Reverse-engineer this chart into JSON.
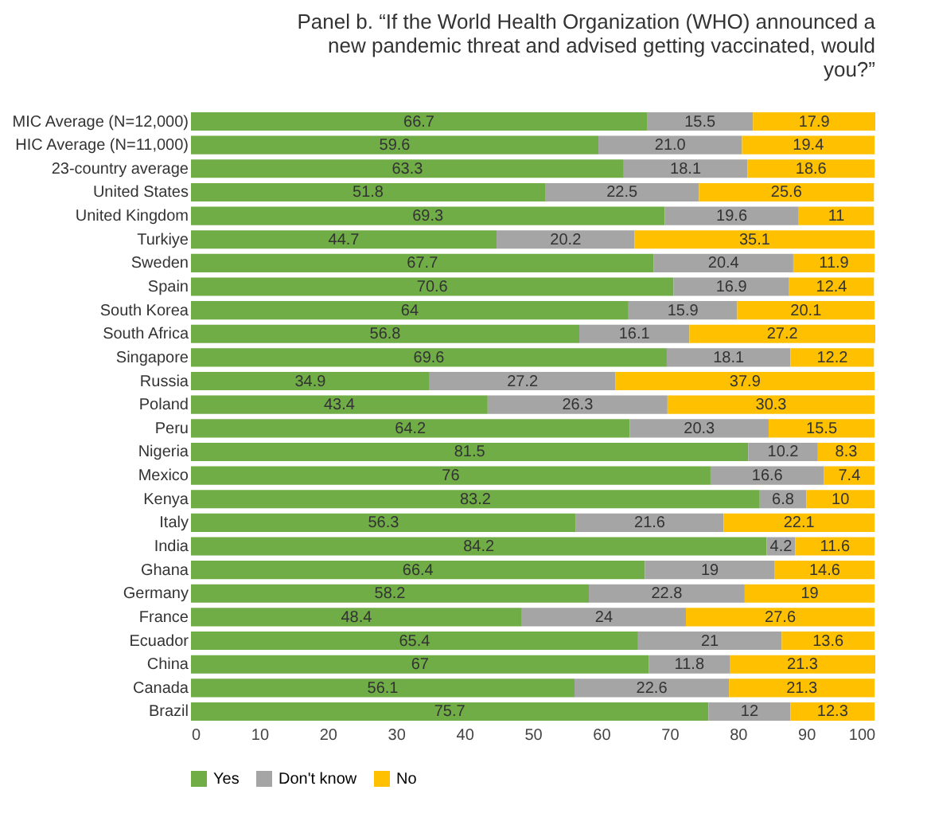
{
  "chart_data": {
    "type": "bar",
    "orientation": "horizontal",
    "stacked": true,
    "title": "Panel b. “If the World Health Organization (WHO) announced a new pandemic threat and advised getting vaccinated, would you?”",
    "categories": [
      "MIC Average (N=12,000)",
      "HIC Average (N=11,000)",
      "23-country average",
      "United States",
      "United Kingdom",
      "Turkiye",
      "Sweden",
      "Spain",
      "South Korea",
      "South Africa",
      "Singapore",
      "Russia",
      "Poland",
      "Peru",
      "Nigeria",
      "Mexico",
      "Kenya",
      "Italy",
      "India",
      "Ghana",
      "Germany",
      "France",
      "Ecuador",
      "China",
      "Canada",
      "Brazil"
    ],
    "series": [
      {
        "name": "Yes",
        "color": "#70ad47",
        "values": [
          66.7,
          59.6,
          63.3,
          51.8,
          69.3,
          44.7,
          67.7,
          70.6,
          64,
          56.8,
          69.6,
          34.9,
          43.4,
          64.2,
          81.5,
          76,
          83.2,
          56.3,
          84.2,
          66.4,
          58.2,
          48.4,
          65.4,
          67,
          56.1,
          75.7
        ],
        "value_labels": [
          "66.7",
          "59.6",
          "63.3",
          "51.8",
          "69.3",
          "44.7",
          "67.7",
          "70.6",
          "64",
          "56.8",
          "69.6",
          "34.9",
          "43.4",
          "64.2",
          "81.5",
          "76",
          "83.2",
          "56.3",
          "84.2",
          "66.4",
          "58.2",
          "48.4",
          "65.4",
          "67",
          "56.1",
          "75.7"
        ]
      },
      {
        "name": "Don't know",
        "color": "#a5a5a5",
        "values": [
          15.5,
          21.0,
          18.1,
          22.5,
          19.6,
          20.2,
          20.4,
          16.9,
          15.9,
          16.1,
          18.1,
          27.2,
          26.3,
          20.3,
          10.2,
          16.6,
          6.8,
          21.6,
          4.2,
          19,
          22.8,
          24,
          21,
          11.8,
          22.6,
          12
        ],
        "value_labels": [
          "15.5",
          "21.0",
          "18.1",
          "22.5",
          "19.6",
          "20.2",
          "20.4",
          "16.9",
          "15.9",
          "16.1",
          "18.1",
          "27.2",
          "26.3",
          "20.3",
          "10.2",
          "16.6",
          "6.8",
          "21.6",
          "4.2",
          "19",
          "22.8",
          "24",
          "21",
          "11.8",
          "22.6",
          "12"
        ]
      },
      {
        "name": "No",
        "color": "#ffc000",
        "values": [
          17.9,
          19.4,
          18.6,
          25.6,
          11,
          35.1,
          11.9,
          12.4,
          20.1,
          27.2,
          12.2,
          37.9,
          30.3,
          15.5,
          8.3,
          7.4,
          10,
          22.1,
          11.6,
          14.6,
          19,
          27.6,
          13.6,
          21.3,
          21.3,
          12.3
        ],
        "value_labels": [
          "17.9",
          "19.4",
          "18.6",
          "25.6",
          "11",
          "35.1",
          "11.9",
          "12.4",
          "20.1",
          "27.2",
          "12.2",
          "37.9",
          "30.3",
          "15.5",
          "8.3",
          "7.4",
          "10",
          "22.1",
          "11.6",
          "14.6",
          "19",
          "27.6",
          "13.6",
          "21.3",
          "21.3",
          "12.3"
        ]
      }
    ],
    "xlim": [
      0,
      100.1
    ],
    "xticks": [
      0,
      10,
      20,
      30,
      40,
      50,
      60,
      70,
      80,
      90,
      100
    ],
    "legend": "bottom"
  }
}
